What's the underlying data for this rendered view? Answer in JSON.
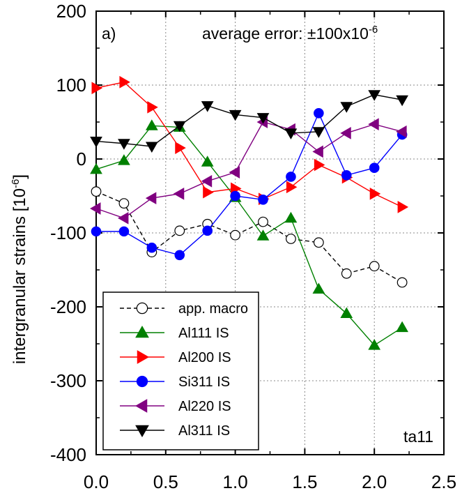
{
  "chart_data": {
    "type": "line",
    "panel_label": "a)",
    "annotation": "average error: ±100x10",
    "annotation_exp": "-6",
    "sample_label": "ta11",
    "ylabel": "intergranular strains [10",
    "ylabel_exp": "-6",
    "ylabel_close": "]",
    "xlabel": "",
    "xlim": [
      0.0,
      2.5
    ],
    "ylim": [
      -400,
      200
    ],
    "xticks": [
      "0.0",
      "0.5",
      "1.0",
      "1.5",
      "2.0",
      "2.5"
    ],
    "yticks": [
      "200",
      "100",
      "0",
      "-100",
      "-200",
      "-300",
      "-400"
    ],
    "grid": true,
    "legend_position": "bottom-left",
    "x": [
      0.0,
      0.2,
      0.4,
      0.6,
      0.8,
      1.0,
      1.2,
      1.4,
      1.6,
      1.8,
      2.0,
      2.2
    ],
    "series": [
      {
        "name": "app. macro",
        "color": "#000000",
        "marker": "circle-open",
        "dash": true,
        "values": [
          -44,
          -60,
          -126,
          -97,
          -88,
          -103,
          -85,
          -108,
          -113,
          -155,
          -145,
          -167
        ]
      },
      {
        "name": "Al111 IS",
        "color": "#008000",
        "marker": "triangle-up",
        "values": [
          -14,
          -2,
          45,
          43,
          -4,
          -52,
          -104,
          -80,
          -176,
          -209,
          -252,
          -228
        ]
      },
      {
        "name": "Al200 IS",
        "color": "#ff0000",
        "marker": "triangle-right",
        "values": [
          96,
          104,
          70,
          15,
          -45,
          -40,
          -54,
          -38,
          -8,
          -25,
          -47,
          -65
        ]
      },
      {
        "name": "Si311 IS",
        "color": "#0000ff",
        "marker": "circle",
        "values": [
          -98,
          -98,
          -120,
          -130,
          -97,
          -50,
          -55,
          -24,
          62,
          -22,
          -12,
          33
        ]
      },
      {
        "name": "Al220 IS",
        "color": "#800080",
        "marker": "triangle-left",
        "values": [
          -67,
          -80,
          -53,
          -47,
          -30,
          -18,
          50,
          40,
          10,
          35,
          47,
          37
        ]
      },
      {
        "name": "Al311 IS",
        "color": "#000000",
        "marker": "triangle-down",
        "values": [
          24,
          21,
          17,
          45,
          72,
          60,
          56,
          35,
          37,
          71,
          87,
          80
        ]
      }
    ]
  }
}
